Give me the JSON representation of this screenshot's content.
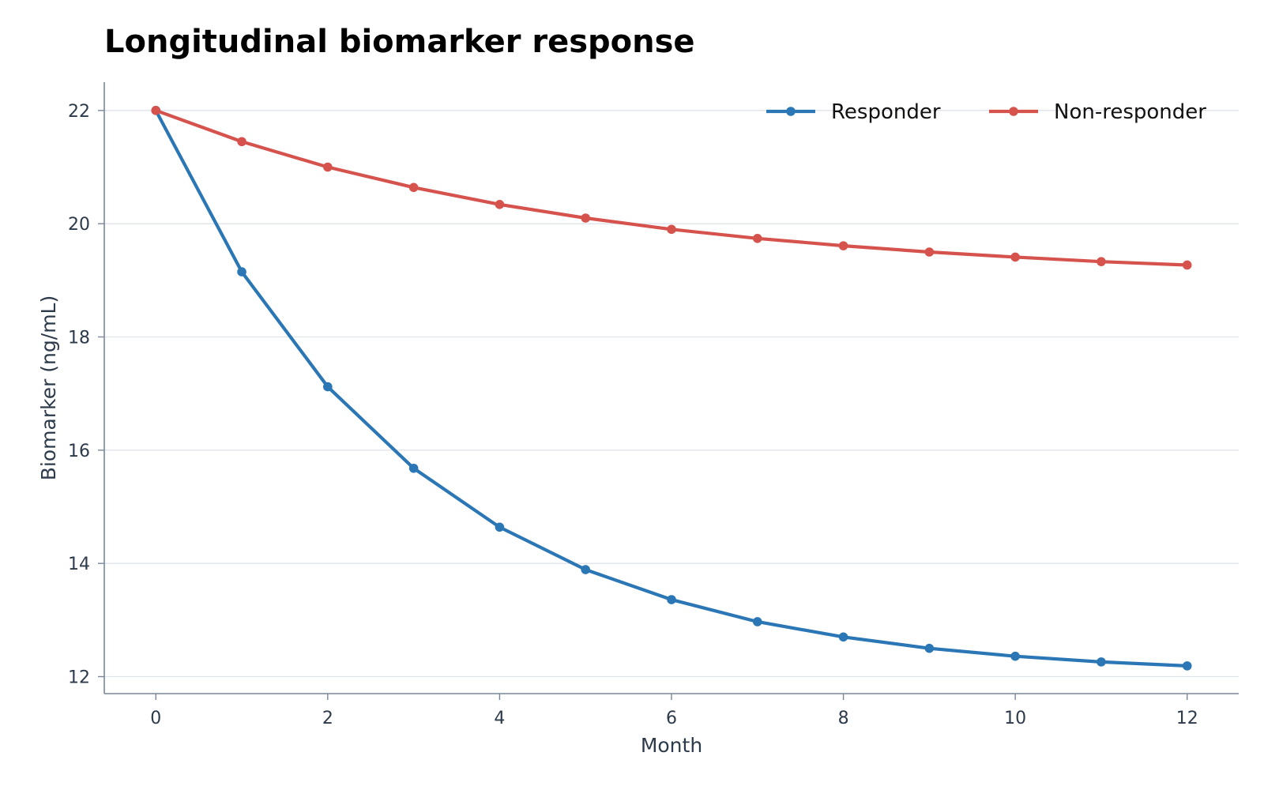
{
  "chart_data": {
    "type": "line",
    "title": "Longitudinal biomarker response",
    "xlabel": "Month",
    "ylabel": "Biomarker (ng/mL)",
    "x": [
      0,
      1,
      2,
      3,
      4,
      5,
      6,
      7,
      8,
      9,
      10,
      11,
      12
    ],
    "xlim": [
      -0.6,
      12.6
    ],
    "ylim": [
      11.7,
      22.5
    ],
    "xticks": [
      0,
      2,
      4,
      6,
      8,
      10,
      12
    ],
    "yticks": [
      12,
      14,
      16,
      18,
      20,
      22
    ],
    "grid": "horizontal",
    "legend_position": "top-right",
    "series": [
      {
        "name": "Responder",
        "color": "#2b76b5",
        "values": [
          22.0,
          19.15,
          17.12,
          15.68,
          14.64,
          13.89,
          13.36,
          12.97,
          12.7,
          12.5,
          12.36,
          12.26,
          12.19
        ]
      },
      {
        "name": "Non-responder",
        "color": "#d6534d",
        "values": [
          22.0,
          21.45,
          21.0,
          20.64,
          20.34,
          20.1,
          19.9,
          19.74,
          19.61,
          19.5,
          19.41,
          19.33,
          19.27
        ]
      }
    ]
  }
}
